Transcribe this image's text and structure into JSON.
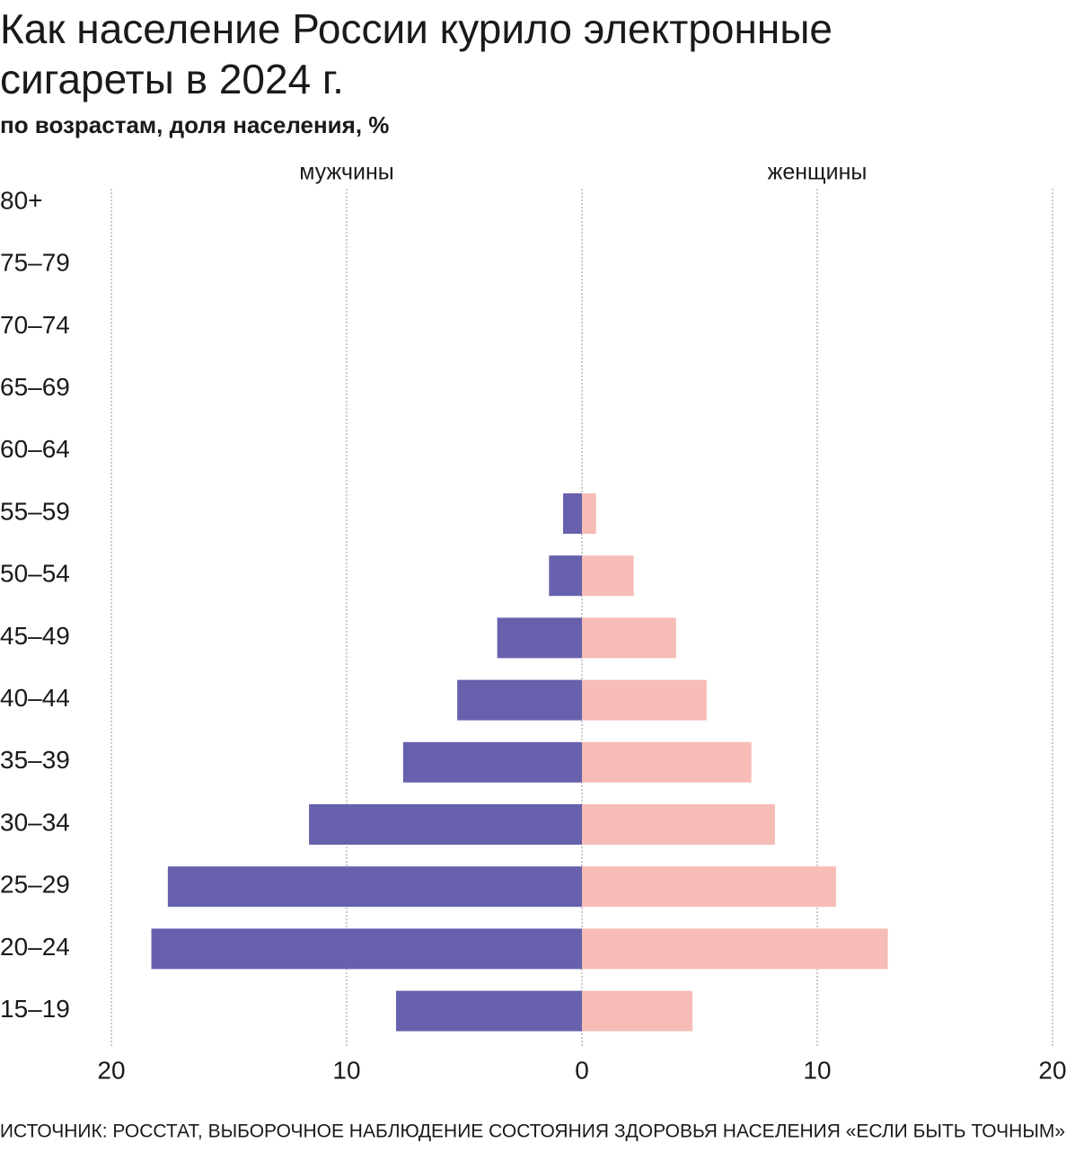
{
  "chart_data": {
    "type": "pyramid",
    "title": [
      "Как население России курило электронные",
      "сигареты в 2024 г."
    ],
    "subtitle": "по возрастам, доля населения, %",
    "categories": [
      "80+",
      "75–79",
      "70–74",
      "65–69",
      "60–64",
      "55–59",
      "50–54",
      "45–49",
      "40–44",
      "35–39",
      "30–34",
      "25–29",
      "20–24",
      "15–19"
    ],
    "series": [
      {
        "name": "мужчины",
        "color": "#6761ad",
        "values": [
          null,
          null,
          null,
          null,
          null,
          0.8,
          1.4,
          3.6,
          5.3,
          7.6,
          11.6,
          17.6,
          18.3,
          7.9
        ]
      },
      {
        "name": "женщины",
        "color": "#f7bcb6",
        "values": [
          null,
          null,
          null,
          null,
          null,
          0.6,
          2.2,
          4.0,
          5.3,
          7.2,
          8.2,
          10.8,
          13.0,
          4.7
        ]
      }
    ],
    "xlim": [
      -20,
      20
    ],
    "xticks": [
      {
        "value": -20,
        "label": "20"
      },
      {
        "value": -10,
        "label": "10"
      },
      0,
      10,
      20
    ],
    "grid": true,
    "source": "ИСТОЧНИК: РОССТАТ, ВЫБОРОЧНОЕ НАБЛЮДЕНИЕ СОСТОЯНИЯ ЗДОРОВЬЯ НАСЕЛЕНИЯ «ЕСЛИ БЫТЬ ТОЧНЫМ»"
  }
}
